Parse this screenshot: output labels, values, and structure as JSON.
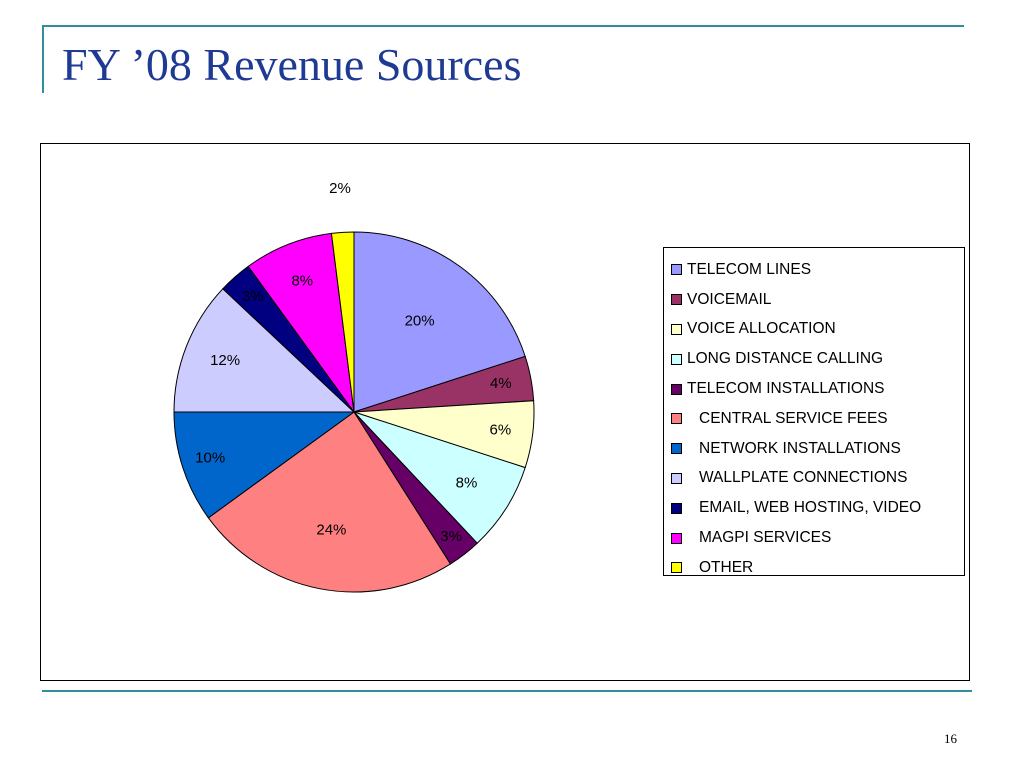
{
  "slide": {
    "title": "FY ’08 Revenue Sources",
    "page_number": "16"
  },
  "chart_data": {
    "type": "pie",
    "title": "",
    "start_angle_deg": 0,
    "direction": "clockwise",
    "legend_position": "right",
    "slices": [
      {
        "name": "TELECOM LINES",
        "value": 20,
        "label": "20%",
        "color": "#9999ff"
      },
      {
        "name": "VOICEMAIL",
        "value": 4,
        "label": "4%",
        "color": "#993366"
      },
      {
        "name": "VOICE ALLOCATION",
        "value": 6,
        "label": "6%",
        "color": "#ffffcc"
      },
      {
        "name": "LONG DISTANCE CALLING",
        "value": 8,
        "label": "8%",
        "color": "#ccffff"
      },
      {
        "name": "TELECOM INSTALLATIONS",
        "value": 3,
        "label": "3%",
        "color": "#660066"
      },
      {
        "name": "CENTRAL SERVICE FEES",
        "value": 24,
        "label": "24%",
        "color": "#ff8080"
      },
      {
        "name": "NETWORK INSTALLATIONS",
        "value": 10,
        "label": "10%",
        "color": "#0066cc"
      },
      {
        "name": "WALLPLATE CONNECTIONS",
        "value": 12,
        "label": "12%",
        "color": "#ccccff"
      },
      {
        "name": "EMAIL, WEB HOSTING, VIDEO",
        "value": 3,
        "label": "3%",
        "color": "#000080"
      },
      {
        "name": "MAGPI SERVICES",
        "value": 8,
        "label": "8%",
        "color": "#ff00ff"
      },
      {
        "name": "OTHER",
        "value": 2,
        "label": "2%",
        "color": "#ffff00"
      }
    ]
  }
}
